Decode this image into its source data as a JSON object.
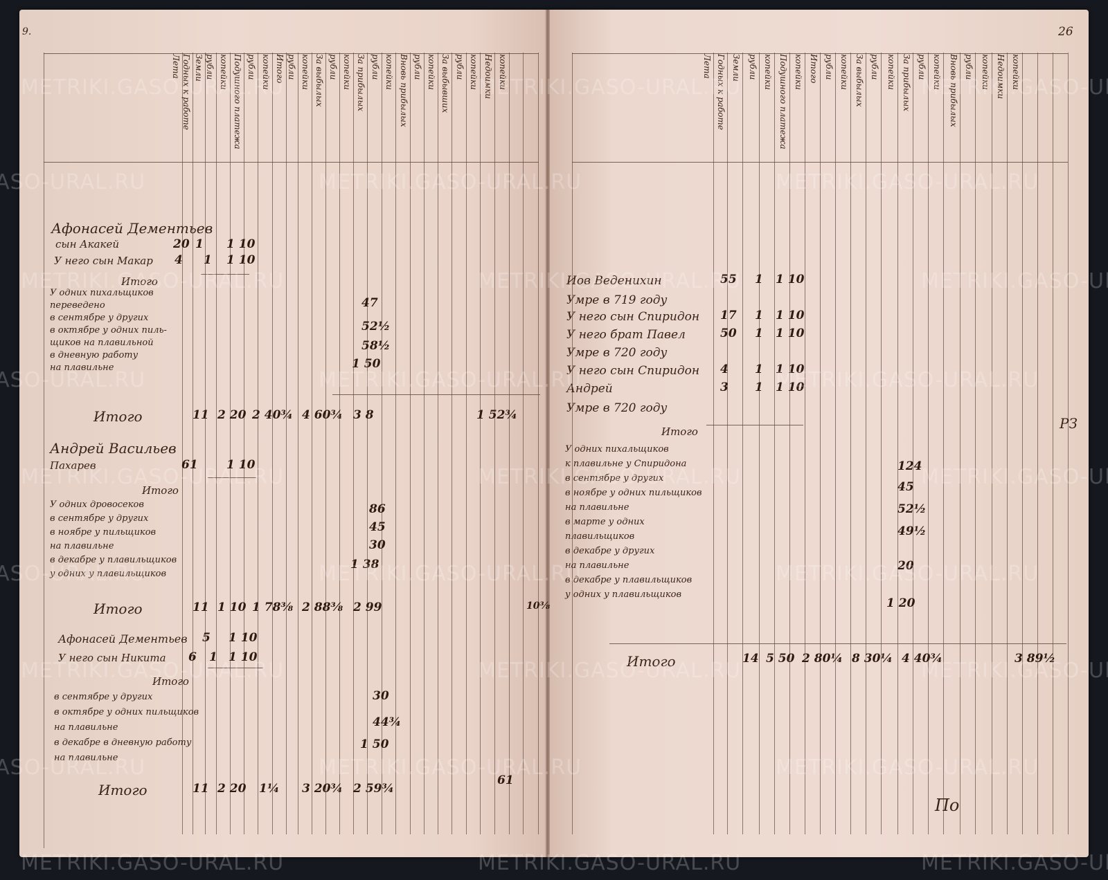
{
  "watermark": "METRIKI.GASO-URAL.RU",
  "page_numbers": {
    "left": "9.",
    "right": "26",
    "margin_mark": "РЗ",
    "catchword": "По"
  },
  "headers": {
    "left": [
      "Лета",
      "Годных к работе",
      "Земли",
      "рубли",
      "копейки",
      "Подушного платежа",
      "рубли",
      "копейки",
      "Итого",
      "рубли",
      "копейки",
      "За выбылых",
      "рубли",
      "копейки",
      "За прибылых",
      "рубли",
      "копейки",
      "Вновь прибылых",
      "рубли",
      "копейки",
      "За выбывших",
      "рубли",
      "копейки",
      "Недоимки",
      "копейки"
    ],
    "right": [
      "Лета",
      "Годных к работе",
      "Земли",
      "рубли",
      "копейки",
      "Подушного платежа",
      "копейки",
      "Итого",
      "рубли",
      "копейки",
      "За выбылых",
      "рубли",
      "копейки",
      "За прибылых",
      "рубли",
      "копейки",
      "Вновь прибылых",
      "рубли",
      "копейки",
      "Недоимки",
      "копейки"
    ]
  },
  "left": {
    "b1": {
      "l1": "Афонасей Дементьев",
      "l2": "сын Акакей",
      "l2v": [
        "20",
        "1",
        "1 10"
      ],
      "l3": "У него сын Макар",
      "l3v": [
        "4",
        "1",
        "1 10"
      ],
      "itogo": "Итого",
      "d1": "У одних пихальщиков",
      "d2": "переведено",
      "d3": "в сентябре у других",
      "d4": "в октябре у одних пиль-",
      "d5": "щиков на плавильной",
      "d6": "в дневную работу",
      "d7": "на плавильне",
      "v": [
        "47",
        "52½",
        "58½",
        "1 50"
      ]
    },
    "t1": {
      "label": "Итого",
      "v": [
        "11",
        "2 20",
        "2 40¾",
        "4 60¾",
        "3 8",
        "1 52¾"
      ]
    },
    "b2": {
      "l1": "Андрей Васильев",
      "l2": "Пахарев",
      "l2v": [
        "61",
        "1 10"
      ],
      "itogo": "Итого",
      "d1": "У одних дровосеков",
      "d2": "в сентябре у других",
      "d3": "в ноябре у пильщиков",
      "d4": "на плавильне",
      "d5": "в декабре у плавильщиков",
      "d6": "у одних у плавильщиков",
      "v": [
        "86",
        "45",
        "30",
        "1 38"
      ]
    },
    "t2": {
      "label": "Итого",
      "v": [
        "11",
        "1 10",
        "1 78⅜",
        "2 88⅜",
        "2 99",
        "10⅜"
      ]
    },
    "b3": {
      "l1": "Афонасей Дементьев",
      "l1v": [
        "5",
        "1 10"
      ],
      "l2": "У него сын Никита",
      "l2v": [
        "6",
        "1",
        "1 10"
      ],
      "itogo": "Итого",
      "d1": "в сентябре у других",
      "d2": "в октябре у одних пильщиков",
      "d3": "на плавильне",
      "d4": "в декабре в дневную работу",
      "d5": "на плавильне",
      "v": [
        "30",
        "44¾",
        "1 50"
      ]
    },
    "t3": {
      "label": "Итого",
      "v": [
        "11",
        "2 20",
        "1¼",
        "3 20¾",
        "2 59¾",
        "61"
      ]
    }
  },
  "right": {
    "rows": [
      {
        "t": "Иов Веденихин",
        "v": [
          "55",
          "1",
          "1 10"
        ]
      },
      {
        "t": "Умре в 719 году",
        "v": []
      },
      {
        "t": "У него сын Спиридон",
        "v": [
          "17",
          "1",
          "1 10"
        ]
      },
      {
        "t": "У него брат Павел",
        "v": [
          "50",
          "1",
          "1 10"
        ]
      },
      {
        "t": "Умре в 720 году",
        "v": []
      },
      {
        "t": "У него сын Спиридон",
        "v": [
          "4",
          "1",
          "1 10"
        ]
      },
      {
        "t": "Андрей",
        "v": [
          "3",
          "1",
          "1 10"
        ]
      },
      {
        "t": "Умре в 720 году",
        "v": []
      }
    ],
    "itogo": "Итого",
    "d": [
      "У одних пихальщиков",
      "к плавильне у Спиридона",
      "в сентябре у других",
      "в ноябре у одних пильщиков",
      "на плавильне",
      "в марте у одних",
      "плавильщиков",
      "в декабре у других",
      "на плавильне",
      "в декабре у плавильщиков",
      "у одних у плавильщиков"
    ],
    "v": [
      "124",
      "45",
      "52½",
      "49½",
      "20",
      "1 20"
    ],
    "total": {
      "label": "Итого",
      "v": [
        "14",
        "5 50",
        "2 80¼",
        "8 30¼",
        "4 40¾",
        "3 89½"
      ]
    }
  }
}
